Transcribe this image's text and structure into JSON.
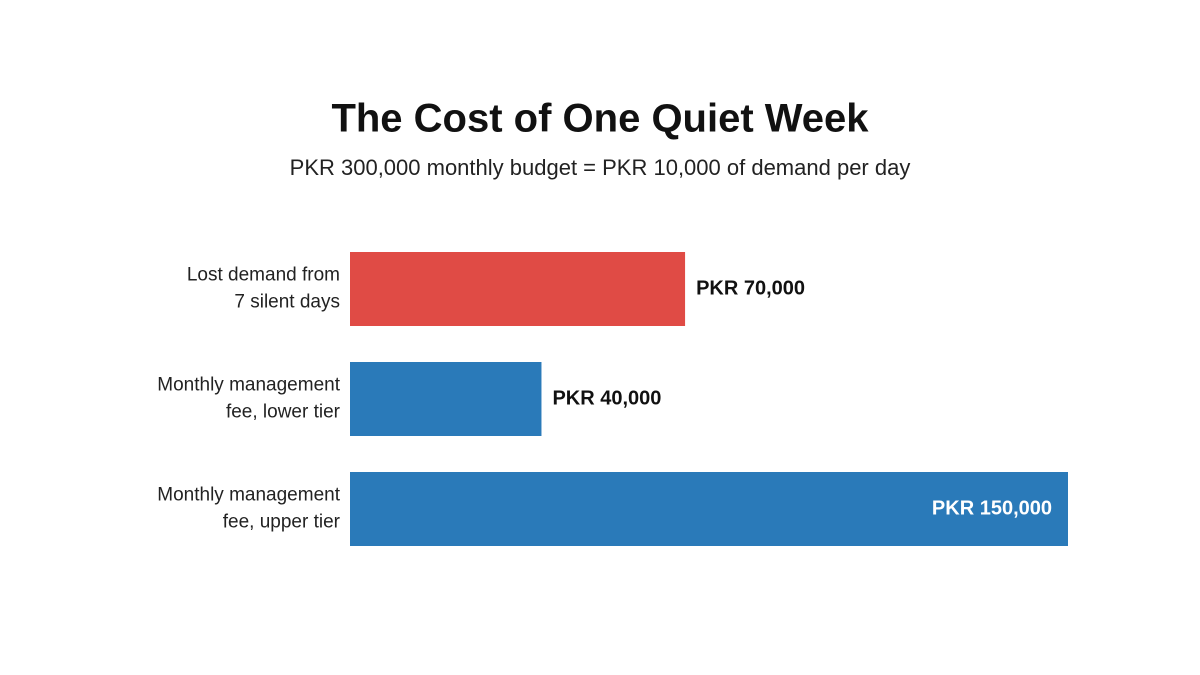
{
  "chart_data": {
    "type": "bar",
    "orientation": "horizontal",
    "title": "The Cost of One Quiet Week",
    "subtitle": "PKR 300,000 monthly budget = PKR 10,000 of demand per day",
    "categories": [
      "Lost demand from 7 silent days",
      "Monthly management fee, lower tier",
      "Monthly management fee, upper tier"
    ],
    "values": [
      70000,
      40000,
      150000
    ],
    "value_labels": [
      "PKR 70,000",
      "PKR 40,000",
      "PKR 150,000"
    ],
    "colors": [
      "#e04b45",
      "#2a7ab9",
      "#2a7ab9"
    ]
  }
}
